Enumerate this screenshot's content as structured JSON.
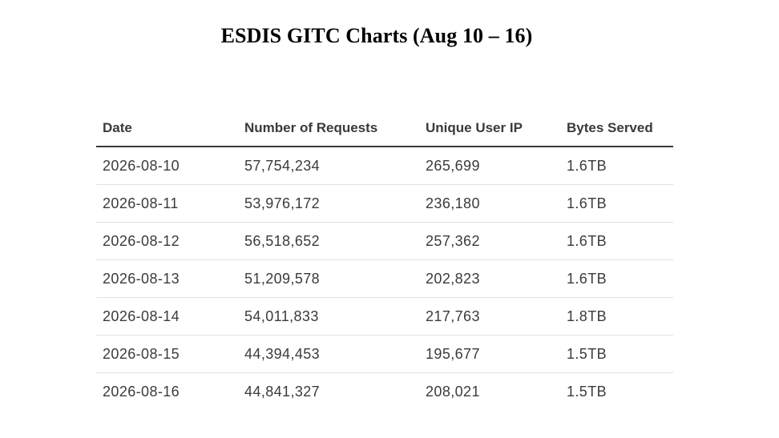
{
  "title": "ESDIS GITC Charts (Aug 10 – 16)",
  "table": {
    "headers": [
      "Date",
      "Number of Requests",
      "Unique User IP",
      "Bytes Served"
    ],
    "rows": [
      [
        "2026-08-10",
        "57,754,234",
        "265,699",
        "1.6TB"
      ],
      [
        "2026-08-11",
        "53,976,172",
        "236,180",
        "1.6TB"
      ],
      [
        "2026-08-12",
        "56,518,652",
        "257,362",
        "1.6TB"
      ],
      [
        "2026-08-13",
        "51,209,578",
        "202,823",
        "1.6TB"
      ],
      [
        "2026-08-14",
        "54,011,833",
        "217,763",
        "1.8TB"
      ],
      [
        "2026-08-15",
        "44,394,453",
        "195,677",
        "1.5TB"
      ],
      [
        "2026-08-16",
        "44,841,327",
        "208,021",
        "1.5TB"
      ]
    ]
  }
}
